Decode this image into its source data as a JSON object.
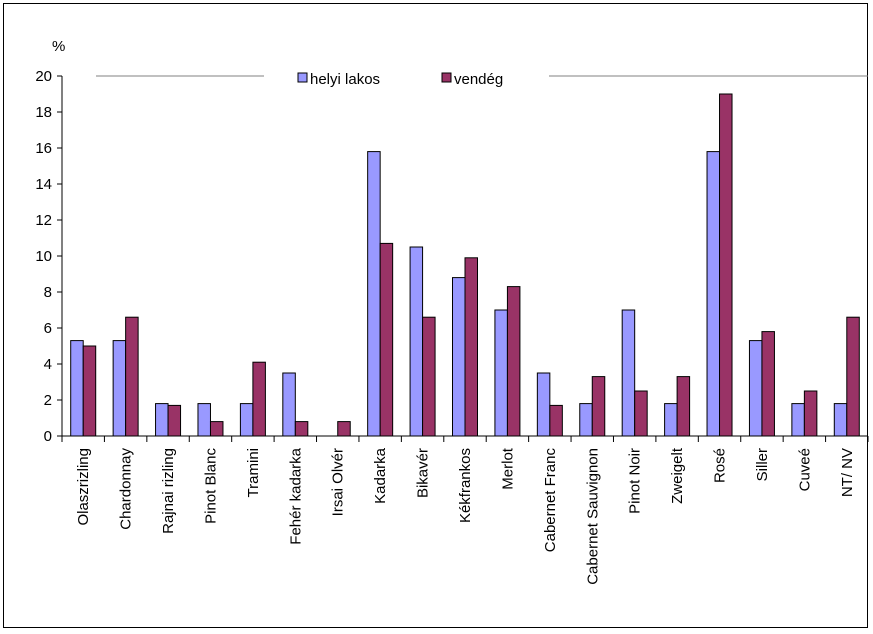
{
  "chart_data": {
    "type": "bar",
    "ylabel": "%",
    "ylim": [
      0,
      20
    ],
    "yticks": [
      0,
      2,
      4,
      6,
      8,
      10,
      12,
      14,
      16,
      18,
      20
    ],
    "grid": false,
    "legend_position": "top-center",
    "categories": [
      "Olaszrizling",
      "Chardonnay",
      "Rajnai rizling",
      "Pinot Blanc",
      "Tramini",
      "Fehér kadarka",
      "Irsai Olvér",
      "Kadarka",
      "Bikavér",
      "Kékfrankos",
      "Merlot",
      "Cabernet Franc",
      "Cabernet Sauvignon",
      "Pinot Noir",
      "Zweigelt",
      "Rosé",
      "Siller",
      "Cuveé",
      "NT/ NV"
    ],
    "series": [
      {
        "name": "helyi lakos",
        "color": "#9999FF",
        "values": [
          5.3,
          5.3,
          1.8,
          1.8,
          1.8,
          3.5,
          0,
          15.8,
          10.5,
          8.8,
          7.0,
          3.5,
          1.8,
          7.0,
          1.8,
          15.8,
          5.3,
          1.8,
          1.8
        ]
      },
      {
        "name": "vendég",
        "color": "#993366",
        "values": [
          5.0,
          6.6,
          1.7,
          0.8,
          4.1,
          0.8,
          0.8,
          10.7,
          6.6,
          9.9,
          8.3,
          1.7,
          3.3,
          2.5,
          3.3,
          19.0,
          5.8,
          2.5,
          6.6
        ]
      }
    ]
  }
}
